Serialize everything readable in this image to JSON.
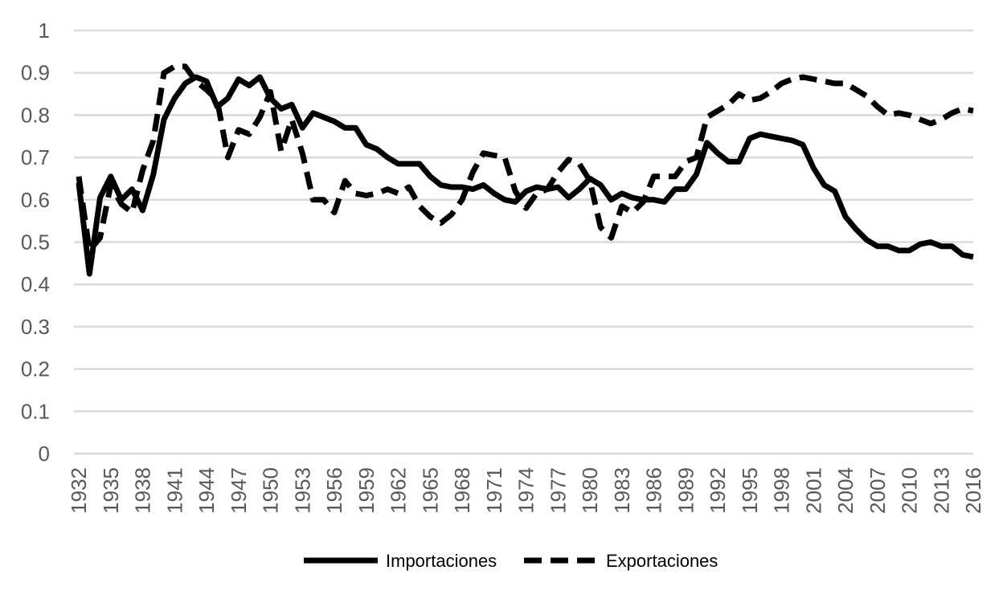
{
  "chart_data": {
    "type": "line",
    "title": "",
    "xlabel": "",
    "ylabel": "",
    "x": [
      1932,
      1933,
      1934,
      1935,
      1936,
      1937,
      1938,
      1939,
      1940,
      1941,
      1942,
      1943,
      1944,
      1945,
      1946,
      1947,
      1948,
      1949,
      1950,
      1951,
      1952,
      1953,
      1954,
      1955,
      1956,
      1957,
      1958,
      1959,
      1960,
      1961,
      1962,
      1963,
      1964,
      1965,
      1966,
      1967,
      1968,
      1969,
      1970,
      1971,
      1972,
      1973,
      1974,
      1975,
      1976,
      1977,
      1978,
      1979,
      1980,
      1981,
      1982,
      1983,
      1984,
      1985,
      1986,
      1987,
      1988,
      1989,
      1990,
      1991,
      1992,
      1993,
      1994,
      1995,
      1996,
      1997,
      1998,
      1999,
      2000,
      2001,
      2002,
      2003,
      2004,
      2005,
      2006,
      2007,
      2008,
      2009,
      2010,
      2011,
      2012,
      2013,
      2014,
      2015,
      2016
    ],
    "x_ticks": [
      "1932",
      "1935",
      "1938",
      "1941",
      "1944",
      "1947",
      "1950",
      "1953",
      "1956",
      "1959",
      "1962",
      "1965",
      "1968",
      "1971",
      "1974",
      "1977",
      "1980",
      "1983",
      "1986",
      "1989",
      "1992",
      "1995",
      "1998",
      "2001",
      "2004",
      "2007",
      "2010",
      "2013",
      "2016"
    ],
    "y_ticks": [
      "0",
      "0.1",
      "0.2",
      "0.3",
      "0.4",
      "0.5",
      "0.6",
      "0.7",
      "0.8",
      "0.9",
      "1"
    ],
    "ylim": [
      0,
      1
    ],
    "grid": "horizontal",
    "legend_position": "bottom",
    "series": [
      {
        "name": "Importaciones",
        "style": "solid",
        "color": "#000000",
        "values": [
          0.64,
          0.425,
          0.605,
          0.655,
          0.6,
          0.625,
          0.575,
          0.66,
          0.79,
          0.84,
          0.875,
          0.89,
          0.88,
          0.82,
          0.84,
          0.885,
          0.87,
          0.89,
          0.84,
          0.815,
          0.825,
          0.77,
          0.805,
          0.795,
          0.785,
          0.77,
          0.77,
          0.73,
          0.72,
          0.7,
          0.685,
          0.685,
          0.685,
          0.655,
          0.635,
          0.63,
          0.63,
          0.625,
          0.635,
          0.615,
          0.6,
          0.595,
          0.62,
          0.63,
          0.625,
          0.63,
          0.605,
          0.625,
          0.65,
          0.635,
          0.6,
          0.615,
          0.605,
          0.6,
          0.6,
          0.595,
          0.625,
          0.625,
          0.66,
          0.735,
          0.71,
          0.69,
          0.69,
          0.745,
          0.755,
          0.75,
          0.745,
          0.74,
          0.73,
          0.675,
          0.635,
          0.62,
          0.56,
          0.53,
          0.505,
          0.49,
          0.49,
          0.48,
          0.48,
          0.495,
          0.5,
          0.49,
          0.49,
          0.47,
          0.465
        ]
      },
      {
        "name": "Exportaciones",
        "style": "dashed",
        "color": "#000000",
        "values": [
          0.655,
          0.48,
          0.51,
          0.635,
          0.59,
          0.57,
          0.67,
          0.74,
          0.9,
          0.915,
          0.915,
          0.88,
          0.86,
          0.835,
          0.7,
          0.765,
          0.755,
          0.795,
          0.855,
          0.715,
          0.79,
          0.71,
          0.6,
          0.6,
          0.57,
          0.645,
          0.615,
          0.61,
          0.615,
          0.625,
          0.615,
          0.63,
          0.585,
          0.56,
          0.545,
          0.565,
          0.6,
          0.665,
          0.71,
          0.705,
          0.7,
          0.62,
          0.58,
          0.615,
          0.625,
          0.665,
          0.695,
          0.685,
          0.645,
          0.535,
          0.51,
          0.585,
          0.57,
          0.595,
          0.655,
          0.655,
          0.655,
          0.69,
          0.7,
          0.795,
          0.81,
          0.825,
          0.85,
          0.835,
          0.84,
          0.855,
          0.875,
          0.885,
          0.89,
          0.885,
          0.88,
          0.875,
          0.875,
          0.86,
          0.845,
          0.82,
          0.8,
          0.805,
          0.8,
          0.79,
          0.78,
          0.79,
          0.805,
          0.815,
          0.81
        ]
      }
    ]
  }
}
